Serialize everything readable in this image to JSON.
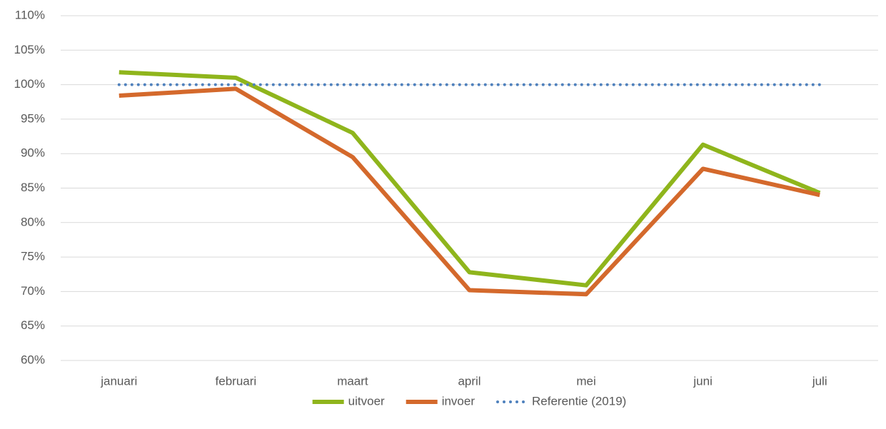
{
  "chart_data": {
    "type": "line",
    "categories": [
      "januari",
      "februari",
      "maart",
      "april",
      "mei",
      "juni",
      "juli"
    ],
    "series": [
      {
        "name": "uitvoer",
        "color": "#8fb51c",
        "values": [
          101.8,
          101.0,
          93.0,
          72.8,
          70.9,
          91.3,
          84.3
        ]
      },
      {
        "name": "invoer",
        "color": "#d4692c",
        "values": [
          98.4,
          99.4,
          89.5,
          70.2,
          69.6,
          87.8,
          84.0
        ]
      },
      {
        "name": "Referentie (2019)",
        "color": "#4f81bd",
        "dash": "dotted",
        "values": [
          100,
          100,
          100,
          100,
          100,
          100,
          100
        ]
      }
    ],
    "ylim": [
      60,
      110
    ],
    "yticks": [
      {
        "value": 60,
        "label": "60%"
      },
      {
        "value": 65,
        "label": "65%"
      },
      {
        "value": 70,
        "label": "70%"
      },
      {
        "value": 75,
        "label": "75%"
      },
      {
        "value": 80,
        "label": "80%"
      },
      {
        "value": 85,
        "label": "85%"
      },
      {
        "value": 90,
        "label": "90%"
      },
      {
        "value": 95,
        "label": "95%"
      },
      {
        "value": 100,
        "label": "100%"
      },
      {
        "value": 105,
        "label": "105%"
      },
      {
        "value": 110,
        "label": "110%"
      }
    ],
    "grid": true,
    "legend": "bottom"
  }
}
